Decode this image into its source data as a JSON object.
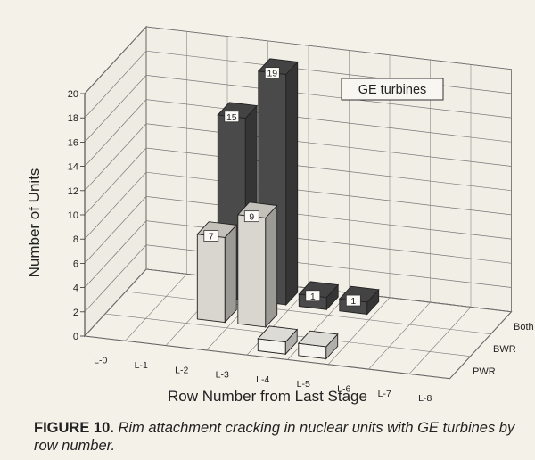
{
  "chart_data": {
    "type": "bar",
    "subtype": "3d-bar",
    "categories": [
      "L-0",
      "L-1",
      "L-2",
      "L-3",
      "L-4",
      "L-5",
      "L-6",
      "L-7",
      "L-8"
    ],
    "series": [
      {
        "name": "PWR",
        "values": [
          0,
          0,
          0,
          0,
          1,
          1,
          0,
          0,
          0
        ],
        "color": "#f5f3ee"
      },
      {
        "name": "BWR",
        "values": [
          0,
          0,
          7,
          9,
          0,
          0,
          0,
          0,
          0
        ],
        "color": "#d9d6cf"
      },
      {
        "name": "Both",
        "values": [
          0,
          0,
          15,
          19,
          1,
          1,
          0,
          0,
          0
        ],
        "color": "#4a4a4a"
      }
    ],
    "front_bar_labels": [
      {
        "category": "L-2",
        "value": 7
      },
      {
        "category": "L-3",
        "value": 9
      }
    ],
    "annotation": "GE turbines",
    "ylabel": "Number of Units",
    "xlabel": "Row Number from Last Stage",
    "yticks": [
      0,
      2,
      4,
      6,
      8,
      10,
      12,
      14,
      16,
      18,
      20
    ],
    "ylim": [
      0,
      20
    ],
    "grid": true
  },
  "caption": {
    "label": "FIGURE 10.",
    "text": " Rim attachment cracking in nuclear units with GE turbines by row number."
  }
}
